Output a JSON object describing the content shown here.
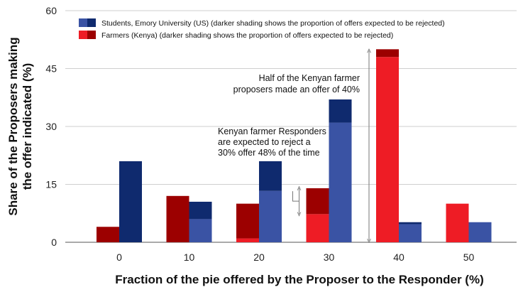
{
  "chart_data": {
    "type": "bar",
    "categories": [
      "0",
      "10",
      "20",
      "30",
      "40",
      "50"
    ],
    "series": [
      {
        "name": "Farmers (Kenya) (darker shading shows the proportion of offers expected to be rejected)",
        "values": [
          4,
          12,
          10,
          14,
          50,
          10
        ],
        "rejected": [
          4,
          12,
          9,
          6.7,
          2,
          0
        ],
        "color_light": "#ee1c25",
        "color_dark": "#9c0000"
      },
      {
        "name": "Students, Emory University (US) (darker shading shows the proportion of offers expected to be rejected)",
        "values": [
          21,
          10.5,
          21,
          37,
          5.2,
          5.2
        ],
        "rejected": [
          21,
          4.5,
          7.7,
          6,
          0.5,
          0
        ],
        "color_light": "#3a53a4",
        "color_dark": "#0f2a6e"
      }
    ],
    "xlabel": "Fraction of the pie offered by the Proposer to the Responder (%)",
    "ylabel": "Share of the Proposers making the offer indicated (%)",
    "ylabel_lines": [
      "Share of the Proposers making",
      "the offer indicated (%)"
    ],
    "yticks": [
      "0",
      "15",
      "30",
      "45",
      "60"
    ],
    "ylim": [
      0,
      60
    ],
    "grid": "horizontal",
    "legend_position": "top-left",
    "annotations": [
      {
        "lines": [
          "Half of the Kenyan farmer",
          "proposers made an offer of 40%"
        ]
      },
      {
        "lines": [
          "Kenyan farmer Responders",
          "are expected to reject a",
          "30% offer 48% of the time"
        ]
      }
    ]
  }
}
